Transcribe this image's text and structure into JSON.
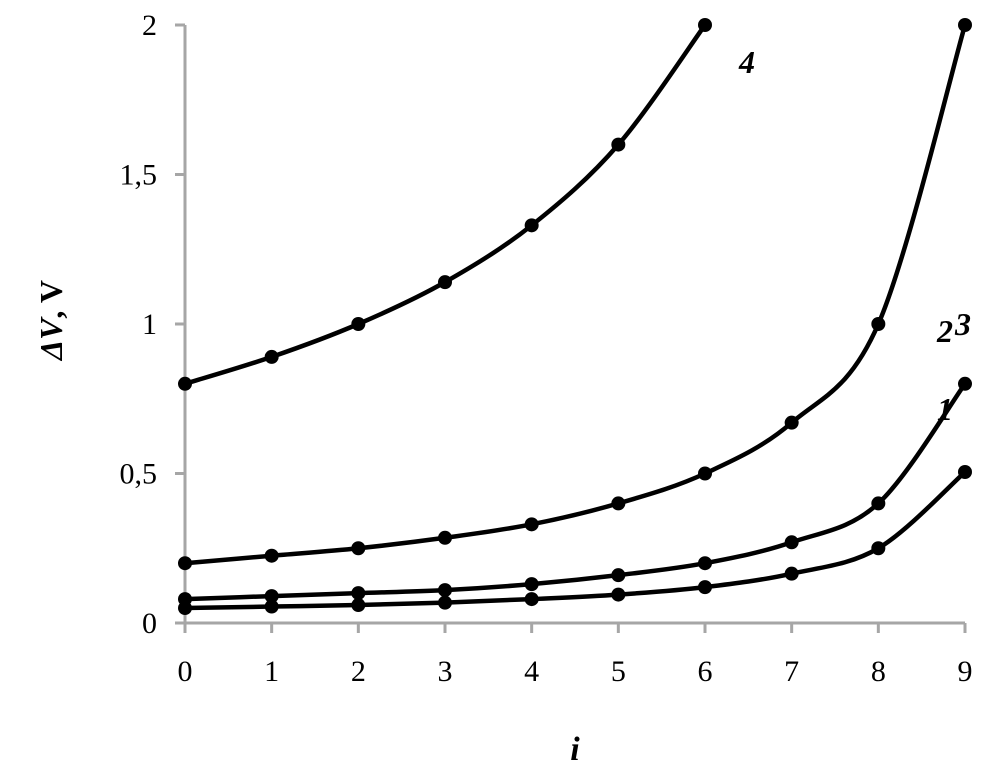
{
  "chart_data": {
    "type": "line",
    "xlabel": "i",
    "ylabel_symbol": "ΔV",
    "ylabel_unit": ", V",
    "xlim": [
      0,
      9
    ],
    "ylim": [
      0,
      2
    ],
    "x_ticks": [
      "0",
      "1",
      "2",
      "3",
      "4",
      "5",
      "6",
      "7",
      "8",
      "9"
    ],
    "y_ticks": [
      {
        "value": 0,
        "label": "0"
      },
      {
        "value": 0.5,
        "label": "0,5"
      },
      {
        "value": 1,
        "label": "1"
      },
      {
        "value": 1.5,
        "label": "1,5"
      },
      {
        "value": 2,
        "label": "2"
      }
    ],
    "grid": false,
    "series": [
      {
        "name": "1",
        "x": [
          0,
          1,
          2,
          3,
          4,
          5,
          6,
          7,
          8,
          9
        ],
        "values": [
          0.05,
          0.055,
          0.06,
          0.068,
          0.08,
          0.095,
          0.12,
          0.165,
          0.25,
          0.505
        ]
      },
      {
        "name": "2",
        "x": [
          0,
          1,
          2,
          3,
          4,
          5,
          6,
          7,
          8,
          9
        ],
        "values": [
          0.08,
          0.09,
          0.1,
          0.11,
          0.13,
          0.16,
          0.2,
          0.27,
          0.4,
          0.8
        ]
      },
      {
        "name": "3",
        "x": [
          0,
          1,
          2,
          3,
          4,
          5,
          6,
          7,
          8,
          9
        ],
        "values": [
          0.2,
          0.225,
          0.25,
          0.285,
          0.33,
          0.4,
          0.5,
          0.67,
          1.0,
          2.0
        ]
      },
      {
        "name": "4",
        "x": [
          0,
          1,
          2,
          3,
          4,
          5,
          6
        ],
        "values": [
          0.8,
          0.89,
          1.0,
          1.14,
          1.33,
          1.6,
          2.0
        ]
      }
    ]
  }
}
